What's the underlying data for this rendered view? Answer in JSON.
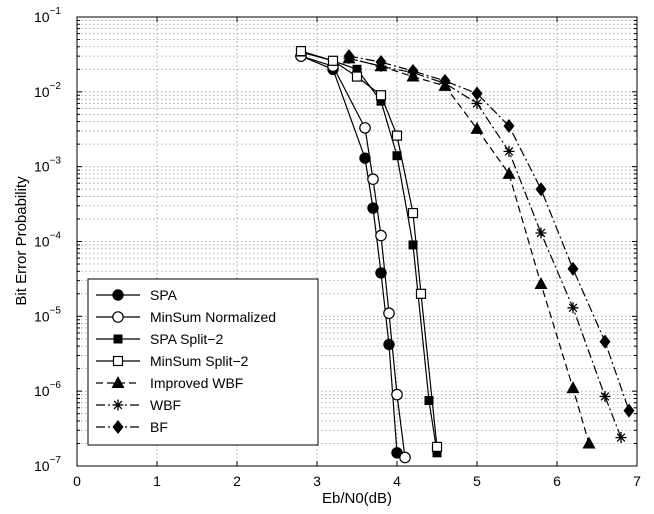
{
  "chart_data": {
    "type": "line",
    "title": "",
    "xlabel": "Eb/N0(dB)",
    "ylabel": "Bit Error Probability",
    "xlim": [
      0,
      7
    ],
    "ylim": [
      1e-07,
      0.1
    ],
    "yscale": "log",
    "grid": true,
    "legend_position": "bottom-left",
    "x_ticks": [
      "0",
      "1",
      "2",
      "3",
      "4",
      "5",
      "6",
      "7"
    ],
    "y_ticks": [
      {
        "base": "10",
        "exp": "−1"
      },
      {
        "base": "10",
        "exp": "−2"
      },
      {
        "base": "10",
        "exp": "−3"
      },
      {
        "base": "10",
        "exp": "−4"
      },
      {
        "base": "10",
        "exp": "−5"
      },
      {
        "base": "10",
        "exp": "−6"
      },
      {
        "base": "10",
        "exp": "−7"
      }
    ],
    "series": [
      {
        "name": "SPA",
        "line": "solid",
        "marker": "filled-circle",
        "x": [
          2.8,
          3.2,
          3.6,
          3.7,
          3.8,
          3.9,
          4.0
        ],
        "y": [
          0.03,
          0.02,
          0.0013,
          0.00028,
          3.8e-05,
          4.2e-06,
          1.5e-07
        ]
      },
      {
        "name": "MinSum Normalized",
        "line": "solid",
        "marker": "open-circle",
        "x": [
          2.8,
          3.2,
          3.6,
          3.7,
          3.8,
          3.9,
          4.0,
          4.1
        ],
        "y": [
          0.03,
          0.022,
          0.0033,
          0.00068,
          0.00012,
          1.1e-05,
          9e-07,
          1.3e-07
        ]
      },
      {
        "name": "SPA Split−2",
        "line": "solid",
        "marker": "filled-square",
        "x": [
          2.8,
          3.2,
          3.5,
          3.8,
          4.0,
          4.2,
          4.4,
          4.5
        ],
        "y": [
          0.034,
          0.026,
          0.02,
          0.0075,
          0.0014,
          9e-05,
          7.5e-07,
          1.5e-07
        ]
      },
      {
        "name": "MinSum Split−2",
        "line": "solid",
        "marker": "open-square",
        "x": [
          2.8,
          3.2,
          3.5,
          3.8,
          4.0,
          4.2,
          4.3,
          4.5
        ],
        "y": [
          0.035,
          0.026,
          0.016,
          0.009,
          0.0026,
          0.00024,
          2e-05,
          1.8e-07
        ]
      },
      {
        "name": "Improved WBF",
        "line": "dashed",
        "marker": "filled-triangle",
        "x": [
          3.4,
          3.8,
          4.2,
          4.6,
          5.0,
          5.4,
          5.8,
          6.2,
          6.4
        ],
        "y": [
          0.028,
          0.022,
          0.016,
          0.012,
          0.0032,
          0.0008,
          2.7e-05,
          1.1e-06,
          2e-07
        ]
      },
      {
        "name": "WBF",
        "line": "dash-dot",
        "marker": "star",
        "x": [
          3.4,
          3.8,
          4.2,
          4.6,
          5.0,
          5.4,
          5.8,
          6.2,
          6.6,
          6.8
        ],
        "y": [
          0.028,
          0.022,
          0.018,
          0.013,
          0.007,
          0.0016,
          0.00013,
          1.3e-05,
          8.5e-07,
          2.4e-07
        ]
      },
      {
        "name": "BF",
        "line": "dash-dot",
        "marker": "filled-diamond",
        "x": [
          3.4,
          3.8,
          4.2,
          4.6,
          5.0,
          5.4,
          5.8,
          6.2,
          6.6,
          6.9
        ],
        "y": [
          0.03,
          0.025,
          0.019,
          0.014,
          0.0095,
          0.0035,
          0.0005,
          4.3e-05,
          4.6e-06,
          5.5e-07
        ]
      }
    ]
  }
}
